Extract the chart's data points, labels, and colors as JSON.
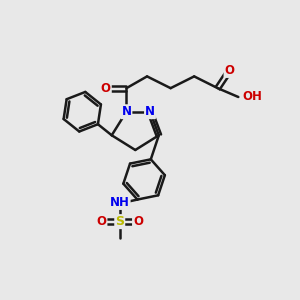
{
  "bg_color": "#e8e8e8",
  "bond_color": "#1a1a1a",
  "bond_width": 1.8,
  "atom_colors": {
    "O": "#cc0000",
    "N": "#0000ee",
    "S": "#bbbb00",
    "H": "#008080",
    "C": "#1a1a1a"
  },
  "figsize": [
    3.0,
    3.0
  ],
  "dpi": 100
}
